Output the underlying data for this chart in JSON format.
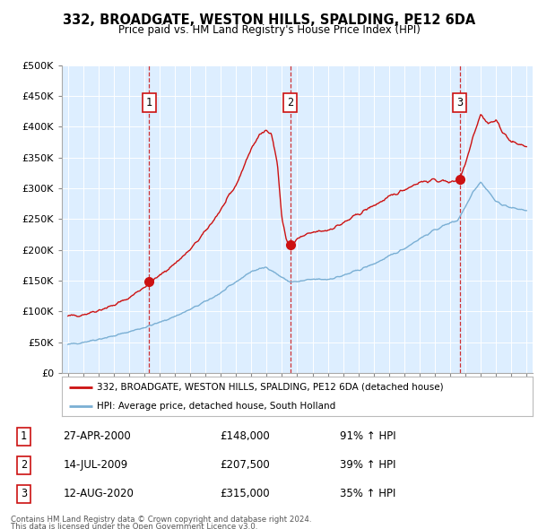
{
  "title": "332, BROADGATE, WESTON HILLS, SPALDING, PE12 6DA",
  "subtitle": "Price paid vs. HM Land Registry's House Price Index (HPI)",
  "hpi_color": "#7aafd4",
  "price_color": "#cc1111",
  "vline_color": "#cc1111",
  "background_color": "#ffffff",
  "plot_bg_color": "#ddeeff",
  "grid_color": "#ffffff",
  "ylim": [
    0,
    500000
  ],
  "yticks": [
    0,
    50000,
    100000,
    150000,
    200000,
    250000,
    300000,
    350000,
    400000,
    450000,
    500000
  ],
  "transactions": [
    {
      "label": "1",
      "date": "27-APR-2000",
      "price": 148000,
      "pct": "91%",
      "dir": "↑",
      "x_year": 2000.32
    },
    {
      "label": "2",
      "date": "14-JUL-2009",
      "price": 207500,
      "pct": "39%",
      "dir": "↑",
      "x_year": 2009.54
    },
    {
      "label": "3",
      "date": "12-AUG-2020",
      "price": 315000,
      "pct": "35%",
      "dir": "↑",
      "x_year": 2020.62
    }
  ],
  "legend_line1": "332, BROADGATE, WESTON HILLS, SPALDING, PE12 6DA (detached house)",
  "legend_line2": "HPI: Average price, detached house, South Holland",
  "footer1": "Contains HM Land Registry data © Crown copyright and database right 2024.",
  "footer2": "This data is licensed under the Open Government Licence v3.0.",
  "xlim_start": 1994.6,
  "xlim_end": 2025.4,
  "hpi_nodes_x": [
    1995,
    1996,
    1997,
    1998,
    1999,
    2000,
    2001,
    2002,
    2003,
    2004,
    2005,
    2006,
    2007,
    2008,
    2009,
    2009.5,
    2010,
    2010.5,
    2011,
    2012,
    2013,
    2014,
    2015,
    2016,
    2017,
    2018,
    2019,
    2020,
    2020.5,
    2021,
    2021.5,
    2022,
    2022.5,
    2023,
    2024,
    2025
  ],
  "hpi_nodes_y": [
    46000,
    50000,
    55000,
    60000,
    67000,
    74000,
    82000,
    92000,
    103000,
    116000,
    130000,
    148000,
    165000,
    172000,
    155000,
    148000,
    148000,
    150000,
    152000,
    152000,
    158000,
    167000,
    177000,
    189000,
    202000,
    218000,
    232000,
    244000,
    248000,
    270000,
    295000,
    310000,
    295000,
    278000,
    268000,
    264000
  ],
  "red_nodes_x": [
    1995,
    1996,
    1997,
    1998,
    1999,
    2000,
    2001,
    2002,
    2003,
    2004,
    2005,
    2006,
    2007,
    2007.5,
    2008,
    2008.3,
    2008.7,
    2009,
    2009.3,
    2009.54,
    2009.8,
    2010,
    2011,
    2012,
    2013,
    2014,
    2015,
    2016,
    2017,
    2018,
    2019,
    2020,
    2020.62,
    2021,
    2021.5,
    2022,
    2022.5,
    2023,
    2023.5,
    2024,
    2025
  ],
  "red_nodes_y": [
    92000,
    95000,
    102000,
    110000,
    122000,
    140000,
    158000,
    178000,
    200000,
    230000,
    265000,
    305000,
    365000,
    385000,
    395000,
    390000,
    340000,
    250000,
    215000,
    207500,
    210000,
    218000,
    228000,
    232000,
    243000,
    258000,
    272000,
    285000,
    298000,
    310000,
    313000,
    310000,
    315000,
    340000,
    385000,
    420000,
    405000,
    410000,
    390000,
    375000,
    368000
  ]
}
